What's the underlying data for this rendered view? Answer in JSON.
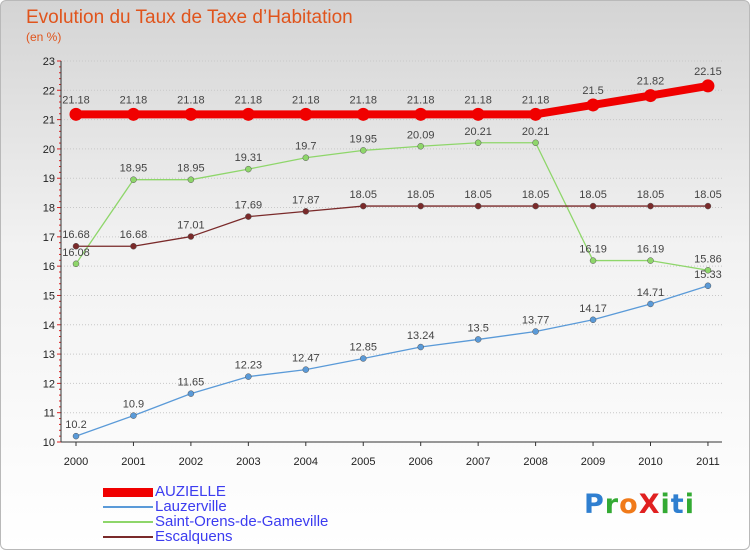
{
  "title": "Evolution du Taux de Taxe d’Habitation",
  "unit": "(en %)",
  "logo": {
    "text": "ProXiti",
    "letters": [
      "P",
      "r",
      "o",
      "X",
      "i",
      "t",
      "i"
    ],
    "colors": [
      "#2f7fd0",
      "#33aa33",
      "#f07a1a",
      "#e02020",
      "#33aa33",
      "#2f7fd0",
      "#33aa33"
    ]
  },
  "chart_data": {
    "type": "line",
    "x": [
      "2000",
      "2001",
      "2002",
      "2003",
      "2004",
      "2005",
      "2006",
      "2007",
      "2008",
      "2009",
      "2010",
      "2011"
    ],
    "ylim": [
      10,
      23
    ],
    "yticks": [
      "10",
      "11",
      "12",
      "13",
      "14",
      "15",
      "16",
      "17",
      "18",
      "19",
      "20",
      "21",
      "22",
      "23"
    ],
    "grid": "horizontal dotted",
    "legend_position": "bottom-left",
    "series": [
      {
        "name": "AUZIELLE",
        "color": "#f00000",
        "values": [
          21.18,
          21.18,
          21.18,
          21.18,
          21.18,
          21.18,
          21.18,
          21.18,
          21.18,
          21.5,
          21.82,
          22.15
        ],
        "labels": [
          "21.18",
          "21.18",
          "21.18",
          "21.18",
          "21.18",
          "21.18",
          "21.18",
          "21.18",
          "21.18",
          "21.5",
          "21.82",
          "22.15"
        ]
      },
      {
        "name": "Lauzerville",
        "color": "#5a9ad8",
        "values": [
          10.2,
          10.9,
          11.65,
          12.23,
          12.47,
          12.85,
          13.24,
          13.5,
          13.77,
          14.17,
          14.71,
          15.33
        ],
        "labels": [
          "10.2",
          "10.9",
          "11.65",
          "12.23",
          "12.47",
          "12.85",
          "13.24",
          "13.5",
          "13.77",
          "14.17",
          "14.71",
          "15.33"
        ]
      },
      {
        "name": "Saint-Orens-de-Gameville",
        "color": "#8ed66a",
        "values": [
          16.08,
          18.95,
          18.95,
          19.31,
          19.7,
          19.95,
          20.09,
          20.21,
          20.21,
          16.19,
          16.19,
          15.86
        ],
        "labels": [
          "16.08",
          "18.95",
          "18.95",
          "19.31",
          "19.7",
          "19.95",
          "20.09",
          "20.21",
          "20.21",
          "16.19",
          "16.19",
          "15.86"
        ]
      },
      {
        "name": "Escalquens",
        "color": "#7a2a2a",
        "values": [
          16.68,
          16.68,
          17.01,
          17.69,
          17.87,
          18.05,
          18.05,
          18.05,
          18.05,
          18.05,
          18.05,
          18.05
        ],
        "labels": [
          "16.68",
          "16.68",
          "17.01",
          "17.69",
          "17.87",
          "18.05",
          "18.05",
          "18.05",
          "18.05",
          "18.05",
          "18.05",
          "18.05"
        ]
      }
    ]
  }
}
